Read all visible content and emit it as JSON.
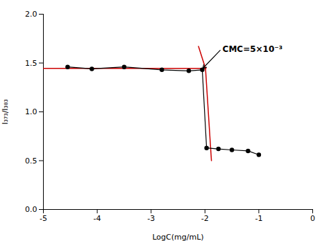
{
  "chart_data": {
    "type": "line",
    "xlabel": "LogC(mg/mL)",
    "ylabel": "I₃₇₃/I₃₈₃",
    "xlim": [
      -5,
      0
    ],
    "ylim": [
      0.0,
      2.0
    ],
    "xticks": [
      -5,
      -4,
      -3,
      -2,
      -1,
      0
    ],
    "yticks": [
      {
        "value": 0.0,
        "label": "0.0"
      },
      0.5,
      {
        "value": 1.0,
        "label": "1.0"
      },
      1.5,
      {
        "value": 2.0,
        "label": "2.0"
      }
    ],
    "grid": false,
    "series": [
      {
        "color": "#000000",
        "marker": "circle",
        "x": [
          -4.55,
          -4.1,
          -3.5,
          -2.8,
          -2.3,
          -2.05,
          -1.97,
          -1.75,
          -1.5,
          -1.2,
          -1.0
        ],
        "values": [
          1.46,
          1.44,
          1.46,
          1.43,
          1.42,
          1.43,
          0.63,
          0.62,
          0.61,
          0.6,
          0.56
        ]
      },
      {
        "color": "#cc0000",
        "x": [
          -5.0,
          -1.98
        ],
        "values": [
          1.445,
          1.445
        ]
      },
      {
        "color": "#cc0000",
        "x": [
          -2.12,
          -1.99,
          -1.88
        ],
        "values": [
          1.67,
          1.445,
          0.5
        ]
      }
    ],
    "annotations": [
      {
        "text": "CMC=5×10⁻³",
        "x": -1.7,
        "y": 1.64,
        "arrow_x": -2.04,
        "arrow_y": 1.445
      }
    ]
  }
}
